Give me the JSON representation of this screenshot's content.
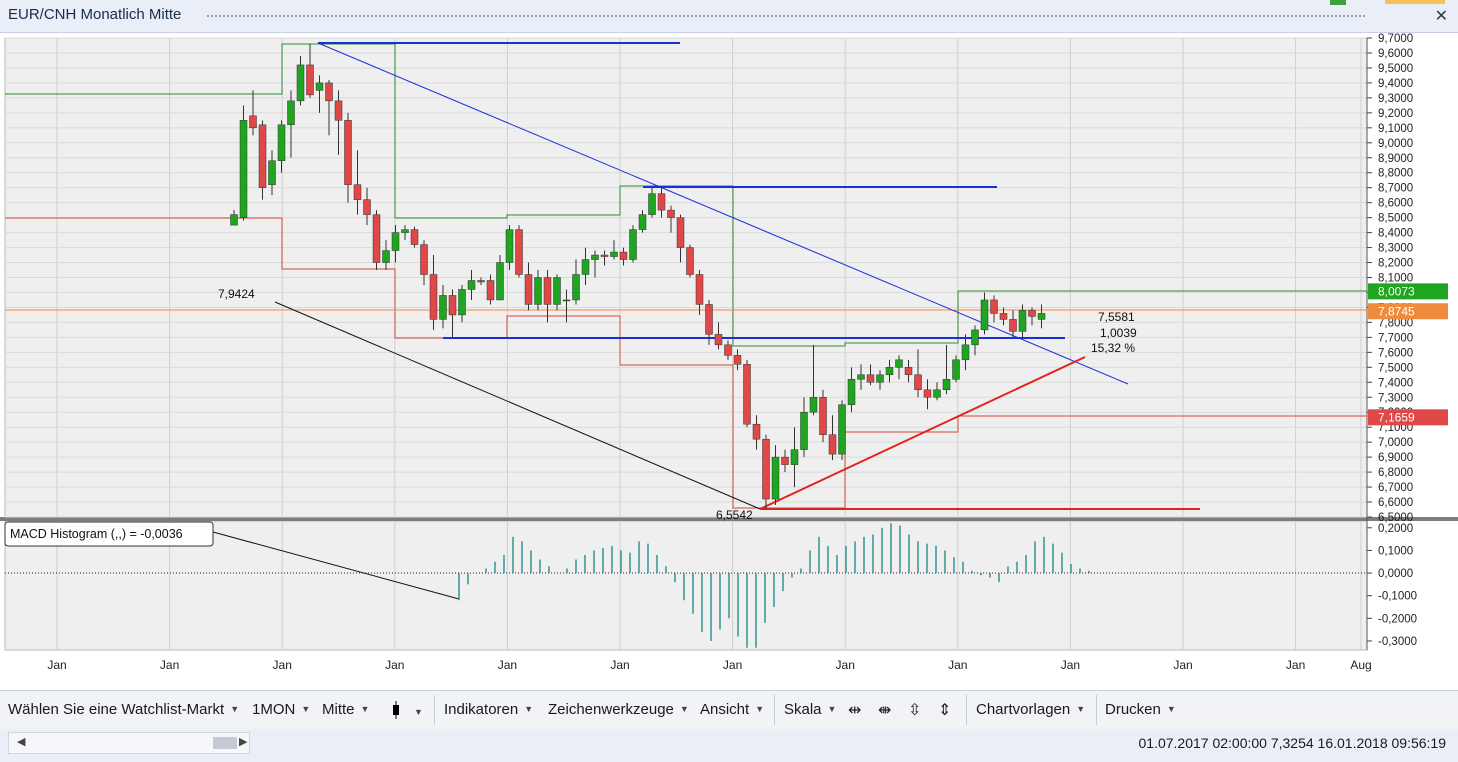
{
  "window": {
    "title": "EUR/CNH Monatlich Mitte",
    "close_label": "✕"
  },
  "chart_data": {
    "type": "candlestick",
    "title": "EUR/CNH Monatlich Mitte",
    "y_ticks": [
      "9,7000",
      "9,6000",
      "9,5000",
      "9,4000",
      "9,3000",
      "9,2000",
      "9,1000",
      "9,0000",
      "8,9000",
      "8,8000",
      "8,7000",
      "8,6000",
      "8,5000",
      "8,4000",
      "8,3000",
      "8,2000",
      "8,1000",
      "8,0000",
      "7,9000",
      "7,8000",
      "7,7000",
      "7,6000",
      "7,5000",
      "7,4000",
      "7,3000",
      "7,2000",
      "7,1000",
      "7,0000",
      "6,9000",
      "6,8000",
      "6,7000",
      "6,6000",
      "6,5000"
    ],
    "ylim": [
      6.5,
      9.7
    ],
    "x_ticks": [
      "Jan",
      "Jan",
      "Jan",
      "Jan",
      "Jan",
      "Jan",
      "Jan",
      "Jan",
      "Jan",
      "Jan",
      "Jan",
      "Jan",
      "Aug"
    ],
    "price_badges": [
      {
        "value": "8,0073",
        "color": "#1fa51f"
      },
      {
        "value": "7,8745",
        "color": "#f08a3c"
      },
      {
        "value": "7,1659",
        "color": "#e04848"
      }
    ],
    "annotations": {
      "left_value": "7,9424",
      "low_value": "6,5542",
      "box_value": "7,5581",
      "box_diff": "1,0039",
      "box_pct": "15,32 %"
    },
    "candles": [
      [
        8.45,
        8.55,
        8.45,
        8.52
      ],
      [
        8.5,
        9.25,
        8.48,
        9.15
      ],
      [
        9.18,
        9.35,
        9.05,
        9.1
      ],
      [
        9.12,
        9.15,
        8.62,
        8.7
      ],
      [
        8.72,
        8.95,
        8.65,
        8.88
      ],
      [
        8.88,
        9.15,
        8.8,
        9.12
      ],
      [
        9.12,
        9.35,
        8.9,
        9.28
      ],
      [
        9.28,
        9.58,
        9.25,
        9.52
      ],
      [
        9.52,
        9.66,
        9.3,
        9.32
      ],
      [
        9.35,
        9.45,
        9.2,
        9.4
      ],
      [
        9.4,
        9.42,
        9.05,
        9.28
      ],
      [
        9.28,
        9.35,
        8.92,
        9.15
      ],
      [
        9.15,
        9.2,
        8.6,
        8.72
      ],
      [
        8.72,
        8.95,
        8.52,
        8.62
      ],
      [
        8.62,
        8.7,
        8.45,
        8.52
      ],
      [
        8.52,
        8.55,
        8.15,
        8.2
      ],
      [
        8.2,
        8.35,
        8.15,
        8.28
      ],
      [
        8.28,
        8.45,
        8.2,
        8.4
      ],
      [
        8.4,
        8.45,
        8.35,
        8.42
      ],
      [
        8.42,
        8.44,
        8.3,
        8.32
      ],
      [
        8.32,
        8.35,
        8.05,
        8.12
      ],
      [
        8.12,
        8.25,
        7.75,
        7.82
      ],
      [
        7.82,
        8.05,
        7.76,
        7.98
      ],
      [
        7.98,
        8.02,
        7.7,
        7.85
      ],
      [
        7.85,
        8.05,
        7.8,
        8.02
      ],
      [
        8.02,
        8.15,
        7.95,
        8.08
      ],
      [
        8.08,
        8.1,
        8.05,
        8.07
      ],
      [
        8.08,
        8.12,
        7.92,
        7.95
      ],
      [
        7.95,
        8.25,
        7.95,
        8.2
      ],
      [
        8.2,
        8.45,
        8.15,
        8.42
      ],
      [
        8.42,
        8.45,
        8.1,
        8.12
      ],
      [
        8.12,
        8.2,
        7.88,
        7.92
      ],
      [
        7.92,
        8.15,
        7.88,
        8.1
      ],
      [
        8.1,
        8.15,
        7.8,
        7.92
      ],
      [
        7.92,
        8.12,
        7.88,
        8.1
      ],
      [
        7.95,
        8.02,
        7.8,
        7.95
      ],
      [
        7.95,
        8.22,
        7.92,
        8.12
      ],
      [
        8.12,
        8.3,
        8.05,
        8.22
      ],
      [
        8.22,
        8.28,
        8.1,
        8.25
      ],
      [
        8.25,
        8.28,
        8.18,
        8.24
      ],
      [
        8.24,
        8.35,
        8.22,
        8.27
      ],
      [
        8.27,
        8.3,
        8.18,
        8.22
      ],
      [
        8.22,
        8.45,
        8.2,
        8.42
      ],
      [
        8.42,
        8.55,
        8.4,
        8.52
      ],
      [
        8.52,
        8.7,
        8.5,
        8.66
      ],
      [
        8.66,
        8.71,
        8.5,
        8.55
      ],
      [
        8.55,
        8.58,
        8.4,
        8.5
      ],
      [
        8.5,
        8.52,
        8.2,
        8.3
      ],
      [
        8.3,
        8.32,
        8.1,
        8.12
      ],
      [
        8.12,
        8.15,
        7.85,
        7.92
      ],
      [
        7.92,
        7.95,
        7.65,
        7.72
      ],
      [
        7.72,
        7.8,
        7.62,
        7.65
      ],
      [
        7.65,
        7.68,
        7.55,
        7.58
      ],
      [
        7.58,
        7.62,
        7.48,
        7.52
      ],
      [
        7.52,
        7.55,
        7.1,
        7.12
      ],
      [
        7.12,
        7.18,
        6.95,
        7.02
      ],
      [
        7.02,
        7.05,
        6.55,
        6.62
      ],
      [
        6.62,
        6.98,
        6.58,
        6.9
      ],
      [
        6.9,
        6.95,
        6.8,
        6.85
      ],
      [
        6.85,
        7.1,
        6.7,
        6.95
      ],
      [
        6.95,
        7.3,
        6.9,
        7.2
      ],
      [
        7.2,
        7.65,
        7.18,
        7.3
      ],
      [
        7.3,
        7.35,
        7.0,
        7.05
      ],
      [
        7.05,
        7.18,
        6.88,
        6.92
      ],
      [
        6.92,
        7.28,
        6.88,
        7.25
      ],
      [
        7.25,
        7.5,
        7.2,
        7.42
      ],
      [
        7.42,
        7.52,
        7.35,
        7.45
      ],
      [
        7.45,
        7.52,
        7.38,
        7.4
      ],
      [
        7.4,
        7.48,
        7.35,
        7.45
      ],
      [
        7.45,
        7.55,
        7.4,
        7.5
      ],
      [
        7.5,
        7.58,
        7.42,
        7.55
      ],
      [
        7.5,
        7.55,
        7.4,
        7.45
      ],
      [
        7.45,
        7.62,
        7.3,
        7.35
      ],
      [
        7.35,
        7.42,
        7.22,
        7.3
      ],
      [
        7.3,
        7.4,
        7.28,
        7.35
      ],
      [
        7.35,
        7.65,
        7.32,
        7.42
      ],
      [
        7.42,
        7.58,
        7.4,
        7.55
      ],
      [
        7.55,
        7.72,
        7.48,
        7.65
      ],
      [
        7.65,
        7.78,
        7.58,
        7.75
      ],
      [
        7.75,
        8.0,
        7.72,
        7.95
      ],
      [
        7.95,
        7.98,
        7.8,
        7.86
      ],
      [
        7.86,
        7.9,
        7.78,
        7.82
      ],
      [
        7.82,
        7.88,
        7.7,
        7.74
      ],
      [
        7.74,
        7.92,
        7.7,
        7.88
      ],
      [
        7.88,
        7.9,
        7.78,
        7.84
      ],
      [
        7.82,
        7.92,
        7.76,
        7.86
      ]
    ],
    "macd": {
      "label": "MACD Histogram (,,) = -0,0036",
      "y_ticks": [
        "0,2000",
        "0,1000",
        "0,0000",
        "-0,1000",
        "-0,2000",
        "-0,3000"
      ],
      "ylim": [
        -0.34,
        0.23
      ],
      "values": [
        -0.12,
        -0.05,
        0.0,
        0.02,
        0.05,
        0.08,
        0.16,
        0.14,
        0.1,
        0.06,
        0.03,
        0.0,
        0.02,
        0.06,
        0.08,
        0.1,
        0.11,
        0.12,
        0.1,
        0.09,
        0.14,
        0.13,
        0.08,
        0.03,
        -0.04,
        -0.12,
        -0.18,
        -0.26,
        -0.3,
        -0.25,
        -0.2,
        -0.28,
        -0.33,
        -0.33,
        -0.22,
        -0.15,
        -0.08,
        -0.02,
        0.02,
        0.1,
        0.16,
        0.12,
        0.08,
        0.12,
        0.14,
        0.16,
        0.17,
        0.2,
        0.22,
        0.21,
        0.17,
        0.14,
        0.13,
        0.12,
        0.1,
        0.07,
        0.05,
        0.01,
        -0.01,
        -0.02,
        -0.04,
        0.03,
        0.05,
        0.08,
        0.14,
        0.16,
        0.13,
        0.09,
        0.04,
        0.02,
        0.01,
        0.0
      ]
    }
  },
  "toolbar": {
    "watchlist": "Wählen Sie eine Watchlist-Markt",
    "interval": "1MON",
    "price_type": "Mitte",
    "indicators": "Indikatoren",
    "drawing_tools": "Zeichenwerkzeuge",
    "view": "Ansicht",
    "scale": "Skala",
    "templates": "Chartvorlagen",
    "print": "Drucken"
  },
  "status": {
    "text": "01.07.2017 02:00:00 7,3254   16.01.2018 09:56:19"
  }
}
